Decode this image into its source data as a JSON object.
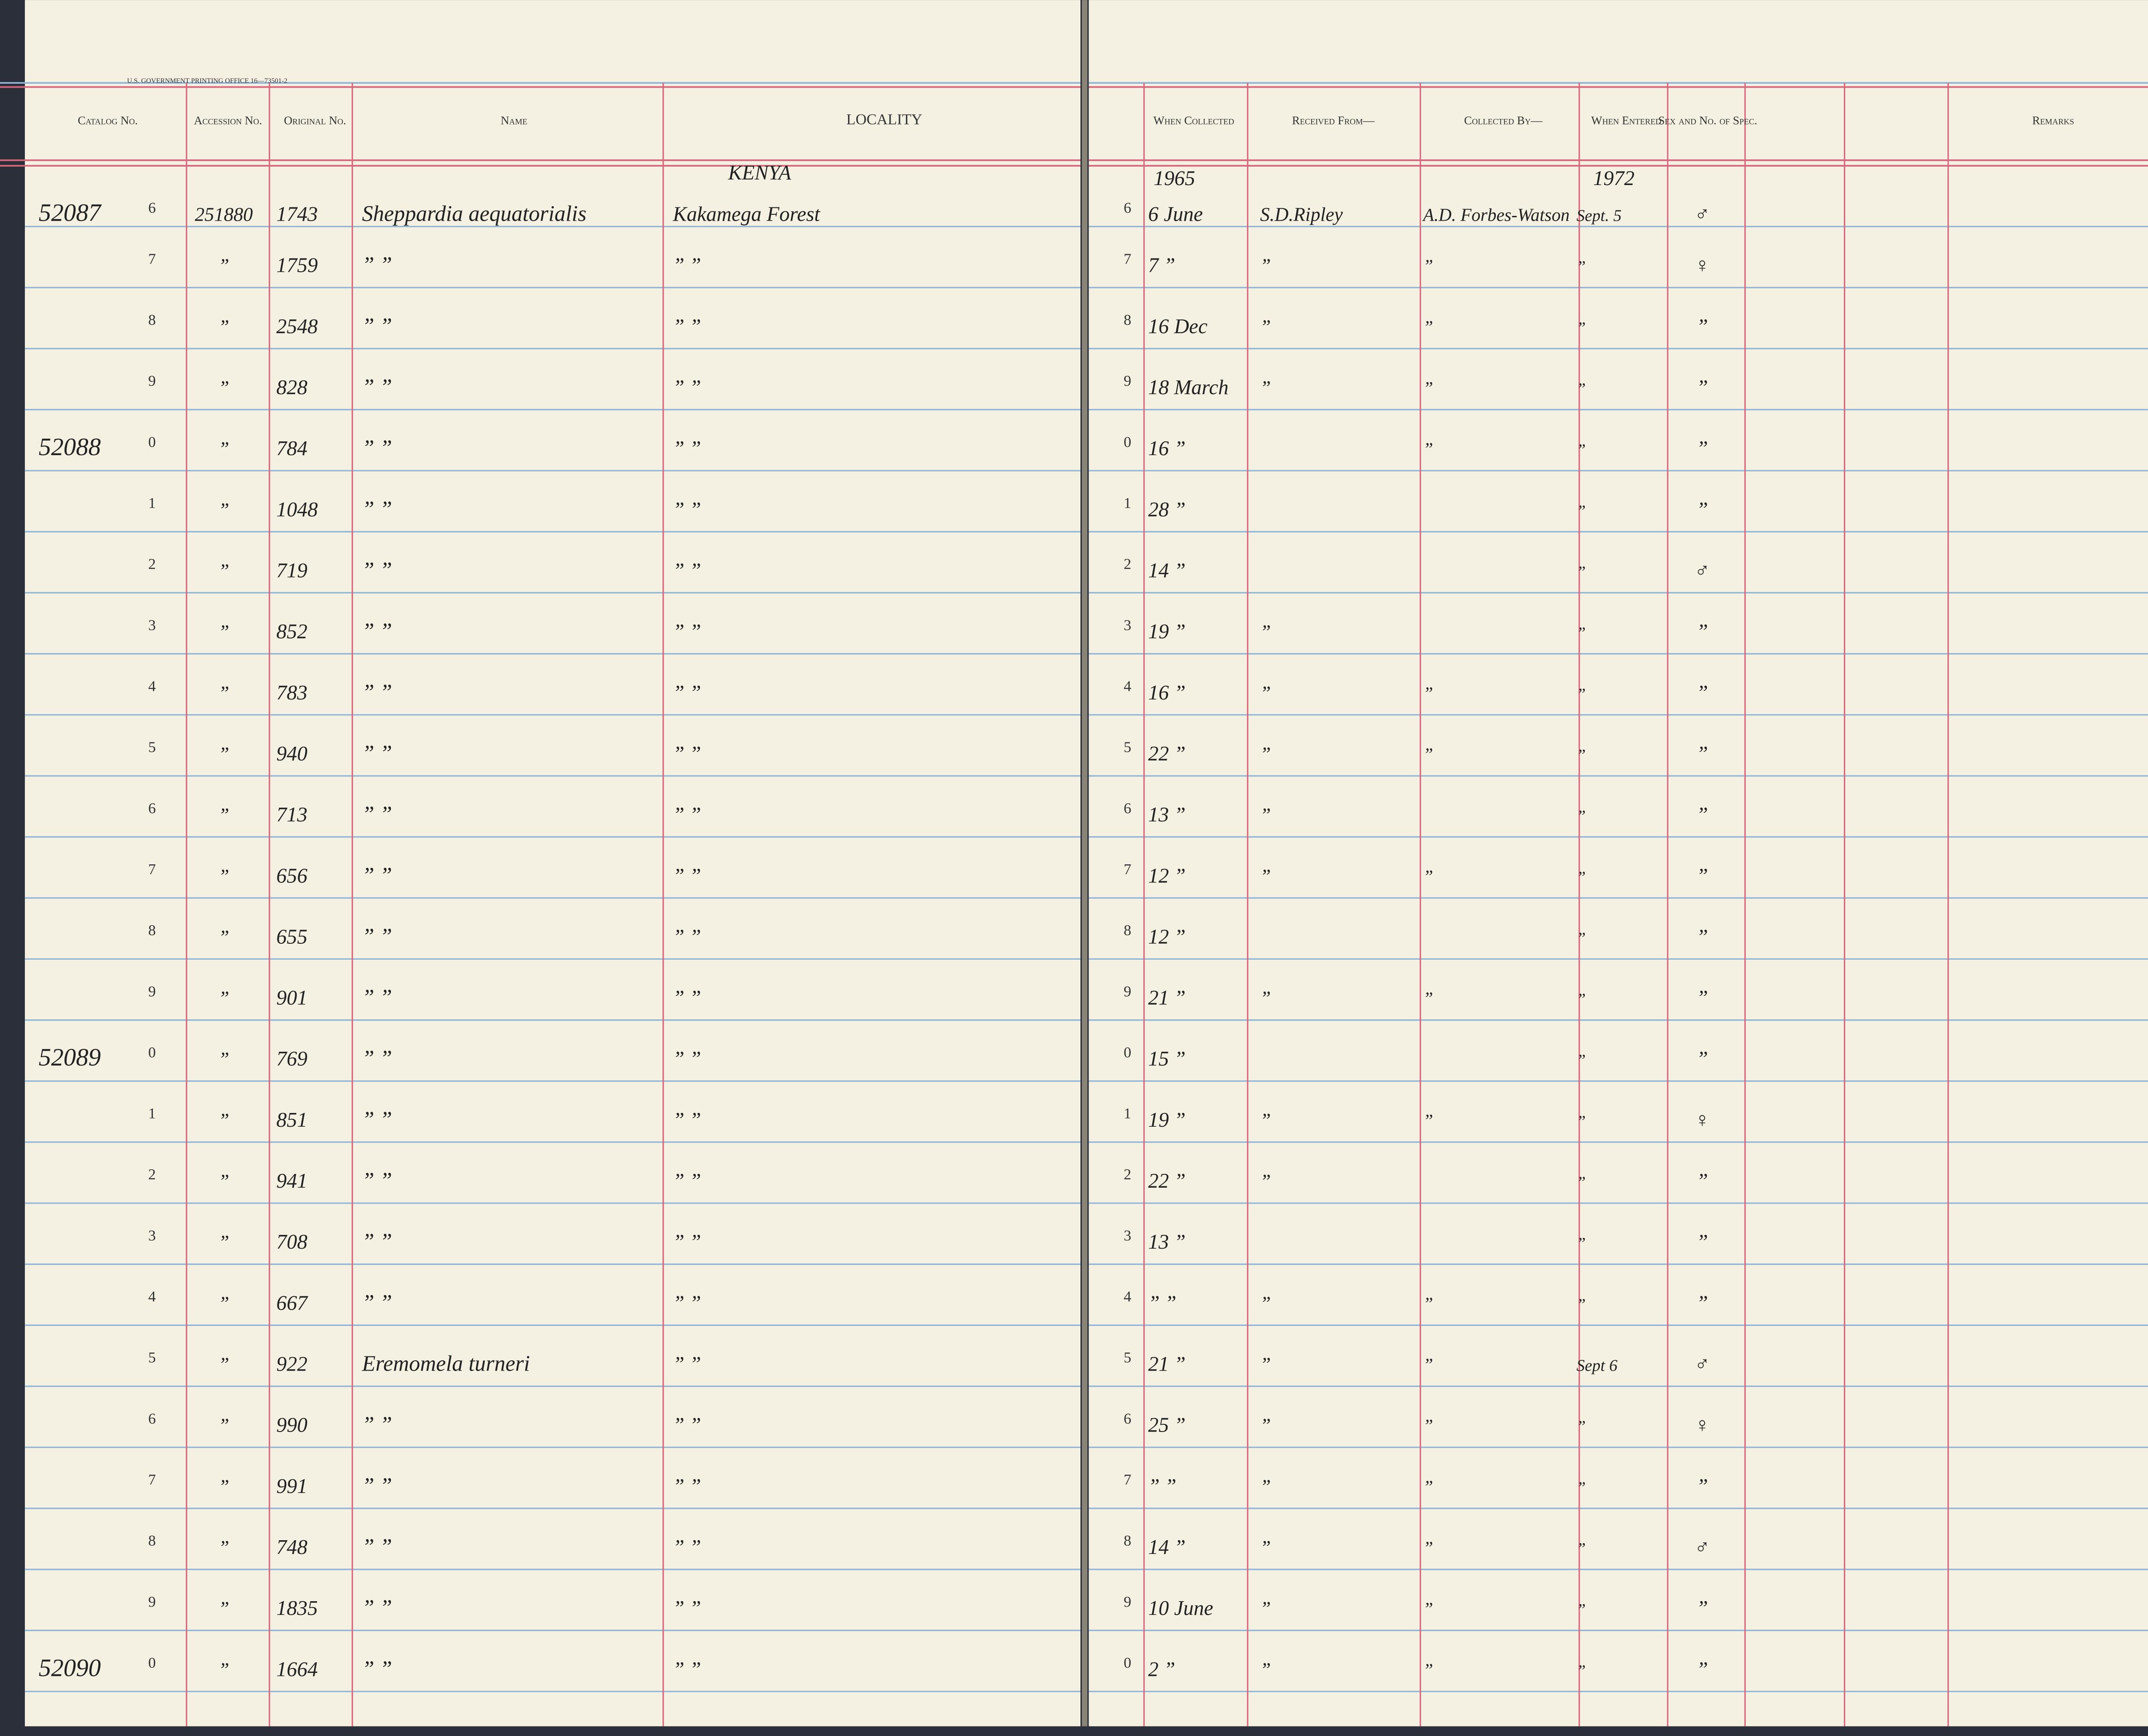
{
  "header": {
    "printer": "U.S. GOVERNMENT PRINTING OFFICE 16—73501-2",
    "columns": [
      "Catalog No.",
      "Accession No.",
      "Original No.",
      "Name",
      "LOCALITY",
      "When Collected",
      "Received From—",
      "Collected By—",
      "When Entered",
      "Sex and No. of Spec.",
      "Remarks"
    ]
  },
  "annotations": {
    "locality": "KENYA",
    "year_collected": "1965",
    "year_entered": "1972"
  },
  "rows": [
    [
      "52087",
      "6",
      "251880",
      "1743",
      "Sheppardia aequatorialis",
      "Kakamega Forest",
      "6",
      "6 June",
      "S.D.Ripley",
      "A.D. Forbes-Watson",
      "Sept. 5",
      "♂"
    ],
    [
      null,
      "7",
      "”",
      "1759",
      "” ”",
      "” ”",
      "7",
      "7 ”",
      "”",
      "”",
      "”",
      "♀"
    ],
    [
      null,
      "8",
      "”",
      "2548",
      "” ”",
      "” ”",
      "8",
      "16 Dec",
      "”",
      "”",
      "”",
      "”"
    ],
    [
      null,
      "9",
      "”",
      "828",
      "” ”",
      "” ”",
      "9",
      "18 March",
      "”",
      "”",
      "”",
      "”"
    ],
    [
      "52088",
      "0",
      "”",
      "784",
      "” ”",
      "” ”",
      "0",
      "16 ”",
      null,
      "”",
      "”",
      "”"
    ],
    [
      null,
      "1",
      "”",
      "1048",
      "” ”",
      "” ”",
      "1",
      "28 ”",
      null,
      null,
      "”",
      "”"
    ],
    [
      null,
      "2",
      "”",
      "719",
      "” ”",
      "” ”",
      "2",
      "14 ”",
      null,
      null,
      "”",
      "♂"
    ],
    [
      null,
      "3",
      "”",
      "852",
      "” ”",
      "” ”",
      "3",
      "19 ”",
      "”",
      null,
      "”",
      "”"
    ],
    [
      null,
      "4",
      "”",
      "783",
      "” ”",
      "” ”",
      "4",
      "16 ”",
      "”",
      "”",
      "”",
      "”"
    ],
    [
      null,
      "5",
      "”",
      "940",
      "” ”",
      "” ”",
      "5",
      "22 ”",
      "”",
      "”",
      "”",
      "”"
    ],
    [
      null,
      "6",
      "”",
      "713",
      "” ”",
      "” ”",
      "6",
      "13 ”",
      "”",
      null,
      "”",
      "”"
    ],
    [
      null,
      "7",
      "”",
      "656",
      "” ”",
      "” ”",
      "7",
      "12 ”",
      "”",
      "”",
      "”",
      "”"
    ],
    [
      null,
      "8",
      "”",
      "655",
      "” ”",
      "” ”",
      "8",
      "12 ”",
      null,
      null,
      "”",
      "”"
    ],
    [
      null,
      "9",
      "”",
      "901",
      "” ”",
      "” ”",
      "9",
      "21 ”",
      "”",
      "”",
      "”",
      "”"
    ],
    [
      "52089",
      "0",
      "”",
      "769",
      "” ”",
      "” ”",
      "0",
      "15 ”",
      null,
      null,
      "”",
      "”"
    ],
    [
      null,
      "1",
      "”",
      "851",
      "” ”",
      "” ”",
      "1",
      "19 ”",
      "”",
      "”",
      "”",
      "♀"
    ],
    [
      null,
      "2",
      "”",
      "941",
      "” ”",
      "” ”",
      "2",
      "22 ”",
      "”",
      null,
      "”",
      "”"
    ],
    [
      null,
      "3",
      "”",
      "708",
      "” ”",
      "” ”",
      "3",
      "13 ”",
      null,
      null,
      "”",
      "”"
    ],
    [
      null,
      "4",
      "”",
      "667",
      "” ”",
      "” ”",
      "4",
      "” ”",
      "”",
      "”",
      "”",
      "”"
    ],
    [
      null,
      "5",
      "”",
      "922",
      "Eremomela turneri",
      "” ”",
      "5",
      "21 ”",
      "”",
      "”",
      "Sept 6",
      "♂"
    ],
    [
      null,
      "6",
      "”",
      "990",
      "” ”",
      "” ”",
      "6",
      "25 ”",
      "”",
      "”",
      "”",
      "♀"
    ],
    [
      null,
      "7",
      "”",
      "991",
      "” ”",
      "” ”",
      "7",
      "” ”",
      "”",
      "”",
      "”",
      "”"
    ],
    [
      null,
      "8",
      "”",
      "748",
      "” ”",
      "” ”",
      "8",
      "14 ”",
      "”",
      "”",
      "”",
      "♂"
    ],
    [
      null,
      "9",
      "”",
      "1835",
      "” ”",
      "” ”",
      "9",
      "10 June",
      "”",
      "”",
      "”",
      "”"
    ],
    [
      "52090",
      "0",
      "”",
      "1664",
      "” ”",
      "” ”",
      "0",
      "2 ”",
      "”",
      "”",
      "”",
      "”"
    ]
  ]
}
